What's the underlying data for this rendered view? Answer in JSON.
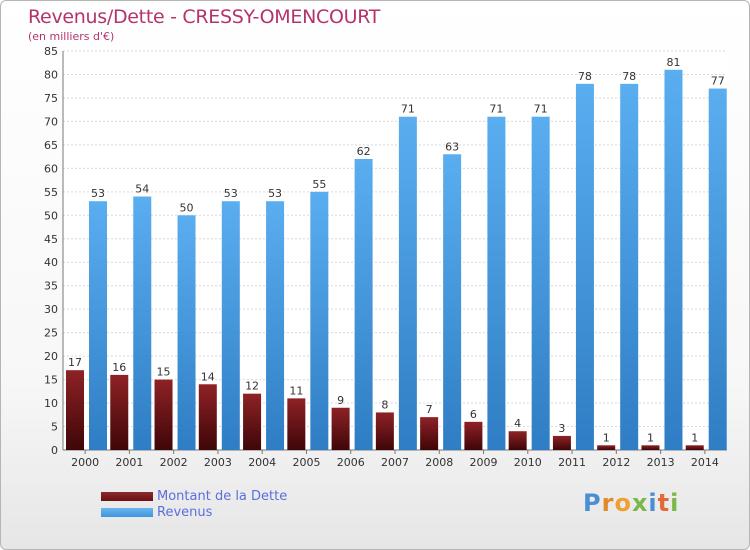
{
  "title": "Revenus/Dette - CRESSY-OMENCOURT",
  "subtitle": "(en milliers d'€)",
  "colors": {
    "dette": "#6b0f12",
    "revenus": "#3e95dc",
    "title": "#b5336b",
    "legend_text": "#5a6fdb"
  },
  "legend": [
    {
      "label": "Montant de la Dette",
      "color": "#6b0f12"
    },
    {
      "label": "Revenus",
      "color": "#3e95dc"
    }
  ],
  "logo": {
    "letters": [
      "P",
      "r",
      "o",
      "x",
      "i",
      "t",
      "i"
    ]
  },
  "chart_data": {
    "type": "bar",
    "categories": [
      "2000",
      "2001",
      "2002",
      "2003",
      "2004",
      "2005",
      "2006",
      "2007",
      "2008",
      "2009",
      "2010",
      "2011",
      "2012",
      "2013",
      "2014"
    ],
    "series": [
      {
        "name": "Montant de la Dette",
        "values": [
          17,
          16,
          15,
          14,
          12,
          11,
          9,
          8,
          7,
          6,
          4,
          3,
          1,
          1,
          1
        ]
      },
      {
        "name": "Revenus",
        "values": [
          53,
          54,
          50,
          53,
          53,
          55,
          62,
          71,
          63,
          71,
          71,
          78,
          78,
          81,
          77
        ]
      }
    ],
    "title": "Revenus/Dette - CRESSY-OMENCOURT",
    "subtitle": "(en milliers d'€)",
    "ylim": [
      0,
      85
    ],
    "yticks": [
      0,
      5,
      10,
      15,
      20,
      25,
      30,
      35,
      40,
      45,
      50,
      55,
      60,
      65,
      70,
      75,
      80,
      85
    ],
    "grid": true,
    "legend_position": "bottom-left"
  }
}
